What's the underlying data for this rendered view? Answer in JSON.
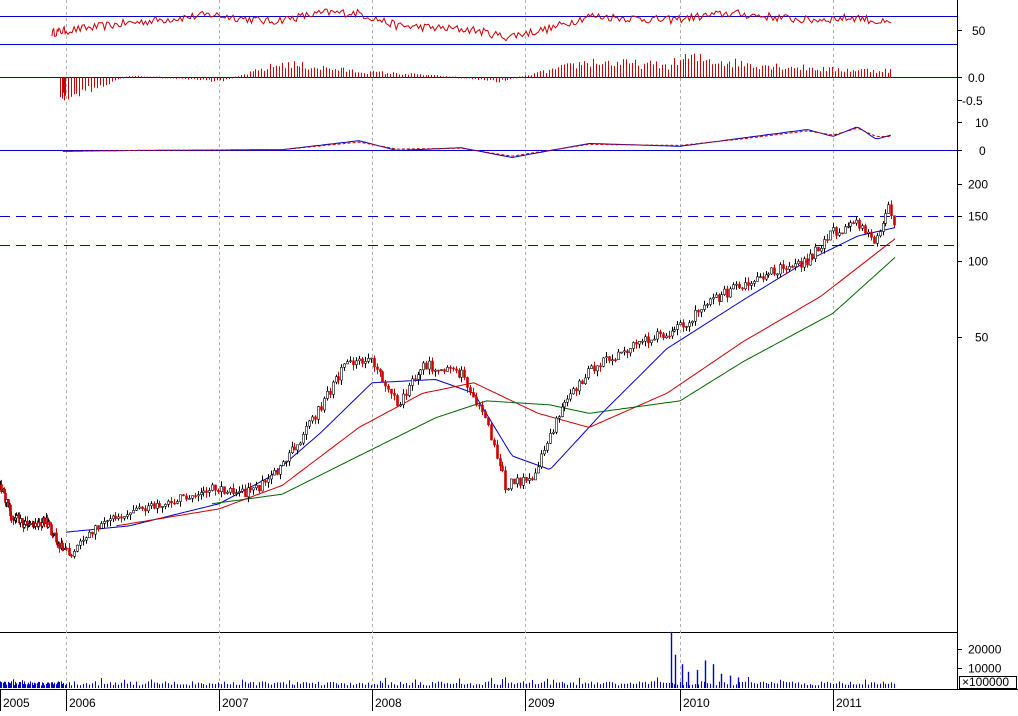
{
  "chart_data": {
    "type": "candlestick",
    "x_axis": {
      "type": "date",
      "labels": [
        "2005",
        "2006",
        "2007",
        "2008",
        "2009",
        "2010",
        "2011"
      ],
      "year_starts": [
        "2005-01-01",
        "2006-01-01",
        "2007-01-01",
        "2008-01-01",
        "2009-01-01",
        "2010-01-01",
        "2011-01-01"
      ]
    },
    "panels": [
      {
        "name": "rsi",
        "tick_labels": [
          "50"
        ],
        "reference_levels": [
          70,
          50,
          30
        ],
        "series_color": "#cc0000",
        "key_points": [
          [
            "2005-10-15",
            46
          ],
          [
            "2006-01-15",
            50
          ],
          [
            "2006-06-01",
            60
          ],
          [
            "2006-12-15",
            72
          ],
          [
            "2007-05-01",
            62
          ],
          [
            "2007-09-15",
            75
          ],
          [
            "2007-12-01",
            74
          ],
          [
            "2008-03-01",
            56
          ],
          [
            "2008-09-01",
            50
          ],
          [
            "2008-11-15",
            40
          ],
          [
            "2009-03-01",
            52
          ],
          [
            "2009-06-01",
            70
          ],
          [
            "2009-12-01",
            64
          ],
          [
            "2010-05-01",
            74
          ],
          [
            "2010-11-01",
            64
          ],
          [
            "2011-03-01",
            68
          ],
          [
            "2011-05-20",
            58
          ]
        ]
      },
      {
        "name": "momentum",
        "tick_labels": [
          "0.0",
          "-0.5"
        ],
        "bar_color": "#cc0000",
        "key_points": [
          [
            "2005-12-01",
            -0.5
          ],
          [
            "2006-03-01",
            -0.3
          ],
          [
            "2006-06-01",
            0.05
          ],
          [
            "2007-01-01",
            -0.1
          ],
          [
            "2007-06-01",
            0.35
          ],
          [
            "2007-12-01",
            0.15
          ],
          [
            "2008-06-01",
            0.05
          ],
          [
            "2008-11-01",
            -0.1
          ],
          [
            "2009-06-01",
            0.4
          ],
          [
            "2009-12-01",
            0.3
          ],
          [
            "2010-01-15",
            0.5
          ],
          [
            "2010-06-01",
            0.35
          ],
          [
            "2011-01-01",
            0.2
          ],
          [
            "2011-05-01",
            0.18
          ]
        ]
      },
      {
        "name": "macd",
        "tick_labels": [
          "10",
          "0"
        ],
        "series": [
          {
            "color": "#0000cc",
            "style": "solid",
            "key_points": [
              [
                "2005-12-15",
                -0.3
              ],
              [
                "2006-06-01",
                0.0
              ],
              [
                "2007-06-01",
                0.3
              ],
              [
                "2007-12-01",
                3.5
              ],
              [
                "2008-03-01",
                0.0
              ],
              [
                "2008-08-01",
                1.0
              ],
              [
                "2008-12-01",
                -2.5
              ],
              [
                "2009-06-01",
                2.5
              ],
              [
                "2010-01-01",
                1.5
              ],
              [
                "2010-06-01",
                4.5
              ],
              [
                "2010-11-01",
                7.5
              ],
              [
                "2011-01-01",
                5.0
              ],
              [
                "2011-03-01",
                8.5
              ],
              [
                "2011-04-15",
                4.0
              ],
              [
                "2011-05-20",
                5.5
              ]
            ]
          },
          {
            "color": "#cc0000",
            "style": "dashed",
            "key_points": [
              [
                "2005-12-15",
                -0.3
              ],
              [
                "2006-06-01",
                0.0
              ],
              [
                "2007-06-01",
                0.3
              ],
              [
                "2007-12-01",
                3.0
              ],
              [
                "2008-03-01",
                0.5
              ],
              [
                "2008-08-01",
                0.8
              ],
              [
                "2008-12-01",
                -2.0
              ],
              [
                "2009-06-01",
                2.2
              ],
              [
                "2010-01-01",
                1.8
              ],
              [
                "2010-06-01",
                4.2
              ],
              [
                "2010-11-01",
                7.0
              ],
              [
                "2011-01-01",
                5.5
              ],
              [
                "2011-03-01",
                8.0
              ],
              [
                "2011-04-15",
                5.0
              ],
              [
                "2011-05-20",
                5.0
              ]
            ]
          }
        ],
        "reference_levels": [
          0
        ]
      },
      {
        "name": "price",
        "scale": "log",
        "tick_labels": [
          "200",
          "150",
          "100",
          "50"
        ],
        "tick_values": [
          200,
          150,
          100,
          50
        ],
        "horizontal_lines": [
          150,
          115
        ],
        "candle_colors": {
          "up": "#000000",
          "down": "#cc0000"
        },
        "price_path": [
          [
            "2005-01-01",
            13
          ],
          [
            "2005-03-01",
            10
          ],
          [
            "2005-06-01",
            9
          ],
          [
            "2005-09-01",
            9.5
          ],
          [
            "2005-12-01",
            7.5
          ],
          [
            "2006-01-15",
            7.0
          ],
          [
            "2006-04-01",
            9.5
          ],
          [
            "2006-07-01",
            10.5
          ],
          [
            "2006-10-01",
            11.5
          ],
          [
            "2006-12-15",
            12.5
          ],
          [
            "2007-03-01",
            12.0
          ],
          [
            "2007-05-01",
            13.5
          ],
          [
            "2007-08-01",
            22.0
          ],
          [
            "2007-11-01",
            40.0
          ],
          [
            "2008-01-01",
            40.0
          ],
          [
            "2008-03-01",
            27.0
          ],
          [
            "2008-05-01",
            39.0
          ],
          [
            "2008-08-01",
            36.0
          ],
          [
            "2008-10-01",
            23.0
          ],
          [
            "2008-11-15",
            13.0
          ],
          [
            "2009-01-15",
            14.0
          ],
          [
            "2009-04-01",
            27.0
          ],
          [
            "2009-06-01",
            37.0
          ],
          [
            "2009-09-01",
            45.0
          ],
          [
            "2010-01-01",
            55.0
          ],
          [
            "2010-04-01",
            72.0
          ],
          [
            "2010-08-01",
            90.0
          ],
          [
            "2010-11-01",
            100.0
          ],
          [
            "2011-01-01",
            130.0
          ],
          [
            "2011-03-01",
            140.0
          ],
          [
            "2011-04-15",
            120.0
          ],
          [
            "2011-05-15",
            165.0
          ],
          [
            "2011-05-30",
            130.0
          ]
        ],
        "moving_averages": [
          {
            "color": "#0000cc",
            "key_points": [
              [
                "2006-01-01",
                8.5
              ],
              [
                "2006-06-01",
                9.0
              ],
              [
                "2007-01-01",
                11.0
              ],
              [
                "2007-05-01",
                14.0
              ],
              [
                "2007-09-01",
                21.0
              ],
              [
                "2008-01-01",
                33.0
              ],
              [
                "2008-06-01",
                34.0
              ],
              [
                "2008-09-01",
                30.0
              ],
              [
                "2008-12-01",
                17.0
              ],
              [
                "2009-03-01",
                15.0
              ],
              [
                "2009-07-01",
                25.0
              ],
              [
                "2009-12-01",
                45.0
              ],
              [
                "2010-06-01",
                70.0
              ],
              [
                "2010-11-01",
                100.0
              ],
              [
                "2011-03-01",
                125.0
              ],
              [
                "2011-05-30",
                135.0
              ]
            ]
          },
          {
            "color": "#cc0000",
            "key_points": [
              [
                "2006-05-01",
                9.0
              ],
              [
                "2007-01-01",
                10.5
              ],
              [
                "2007-06-01",
                13.0
              ],
              [
                "2007-12-01",
                22.0
              ],
              [
                "2008-05-01",
                30.0
              ],
              [
                "2008-09-01",
                33.0
              ],
              [
                "2009-02-01",
                25.0
              ],
              [
                "2009-06-01",
                22.0
              ],
              [
                "2009-12-01",
                30.0
              ],
              [
                "2010-06-01",
                48.0
              ],
              [
                "2010-12-01",
                72.0
              ],
              [
                "2011-05-30",
                122.0
              ]
            ]
          },
          {
            "color": "#006600",
            "key_points": [
              [
                "2006-12-15",
                11.0
              ],
              [
                "2007-06-01",
                12.0
              ],
              [
                "2007-12-01",
                17.0
              ],
              [
                "2008-06-01",
                24.0
              ],
              [
                "2008-10-01",
                28.0
              ],
              [
                "2009-03-01",
                27.0
              ],
              [
                "2009-06-01",
                25.0
              ],
              [
                "2010-01-01",
                28.0
              ],
              [
                "2010-06-01",
                40.0
              ],
              [
                "2011-01-01",
                62.0
              ],
              [
                "2011-05-30",
                103.0
              ]
            ]
          }
        ]
      },
      {
        "name": "volume",
        "tick_labels": [
          "20000",
          "10000"
        ],
        "multiplier_label": "×100000",
        "bar_color": "#0000cc",
        "spikes": [
          [
            "2009-12-10",
            29000
          ],
          [
            "2009-12-20",
            17000
          ],
          [
            "2010-01-05",
            12000
          ],
          [
            "2010-01-20",
            8000
          ],
          [
            "2010-02-10",
            9000
          ],
          [
            "2010-03-01",
            14000
          ],
          [
            "2010-03-20",
            12000
          ],
          [
            "2010-04-10",
            7000
          ],
          [
            "2010-05-01",
            6000
          ],
          [
            "2010-05-20",
            5000
          ]
        ],
        "baseline_range": [
          800,
          3000
        ]
      }
    ]
  }
}
